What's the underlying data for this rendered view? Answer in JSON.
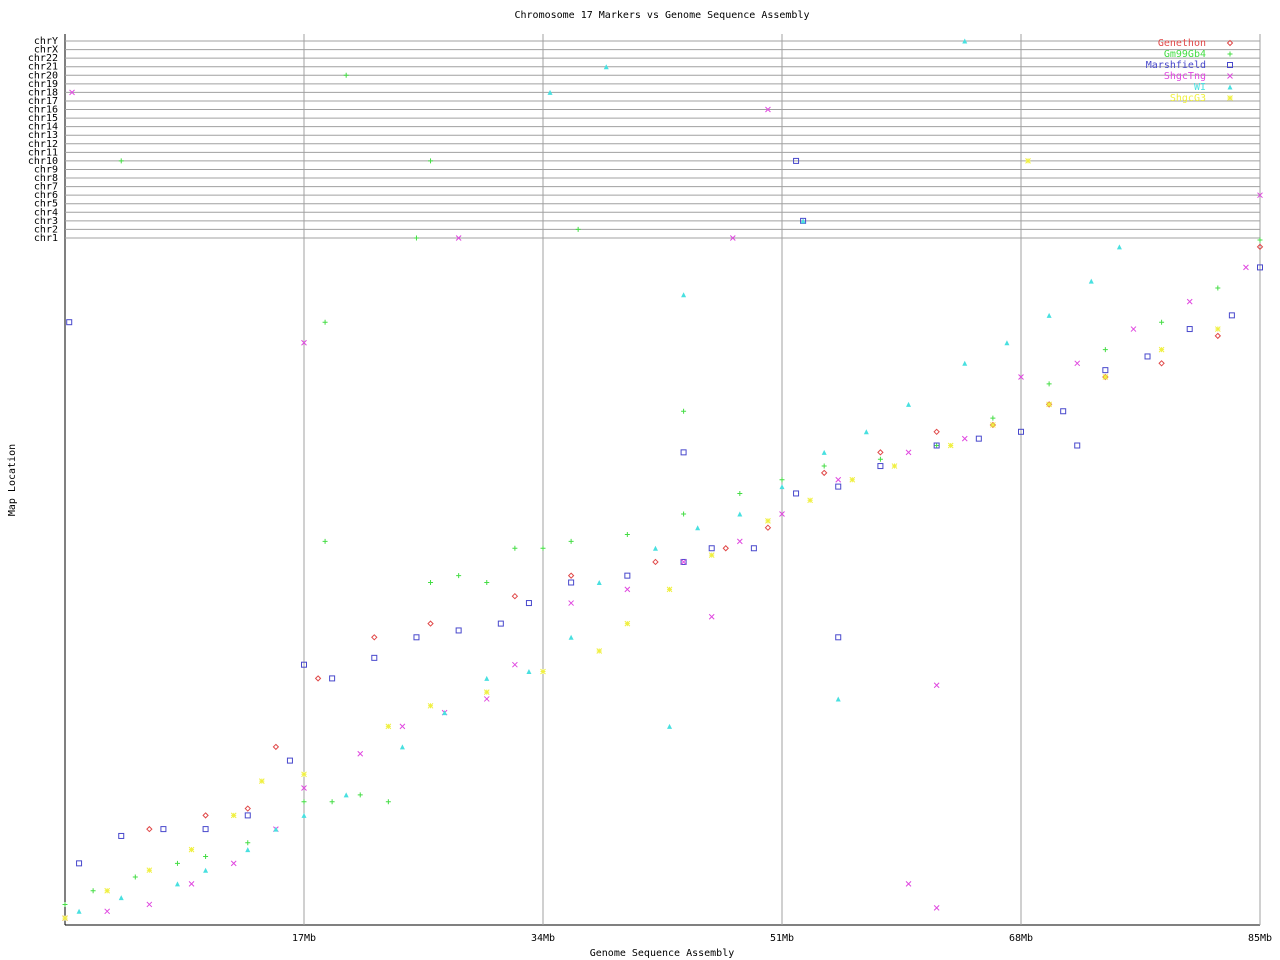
{
  "chart_data": {
    "type": "scatter",
    "title": "Chromosome 17 Markers vs Genome Sequence Assembly",
    "x_label": "Genome Sequence Assembly",
    "y_label": "Map Location",
    "xlim": [
      0,
      85
    ],
    "xticks": [
      {
        "value": 17,
        "label": "17Mb"
      },
      {
        "value": 34,
        "label": "34Mb"
      },
      {
        "value": 51,
        "label": "51Mb"
      },
      {
        "value": 68,
        "label": "68Mb"
      },
      {
        "value": 85,
        "label": "85Mb"
      }
    ],
    "ylim": [
      0,
      100
    ],
    "grid": true,
    "legend": "top-right",
    "chromosomes": [
      "chr1",
      "chr2",
      "chr3",
      "chr4",
      "chr5",
      "chr6",
      "chr7",
      "chr8",
      "chr9",
      "chr10",
      "chr11",
      "chr12",
      "chr13",
      "chr14",
      "chr15",
      "chr16",
      "chr17",
      "chr18",
      "chr19",
      "chr20",
      "chr21",
      "chr22",
      "chrX",
      "chrY"
    ],
    "series": [
      {
        "name": "Genethon",
        "color": "#e04848",
        "marker": "diamond",
        "x": [
          6,
          10,
          13,
          15,
          18,
          22,
          26,
          32,
          36,
          42,
          47,
          50,
          54,
          58,
          62,
          66,
          70,
          74,
          78,
          82,
          85
        ],
        "y": [
          14,
          16,
          17,
          26,
          36,
          42,
          44,
          48,
          51,
          53,
          55,
          58,
          66,
          69,
          72,
          73,
          76,
          80,
          82,
          86,
          99
        ],
        "other": {
          "x": [],
          "chrom": []
        }
      },
      {
        "name": "Gm99Gb4",
        "color": "#44dd44",
        "marker": "plus",
        "x": [
          0,
          2,
          5,
          8,
          10,
          13,
          17,
          19,
          21,
          23,
          26,
          28,
          30,
          32,
          34,
          36,
          40,
          44,
          48,
          51,
          54,
          58,
          62,
          66,
          70,
          74,
          78,
          82,
          85,
          18.5,
          44,
          18.5
        ],
        "y": [
          3,
          5,
          7,
          9,
          10,
          12,
          18,
          18,
          19,
          18,
          50,
          51,
          50,
          55,
          55,
          56,
          57,
          60,
          63,
          65,
          67,
          68,
          70,
          74,
          79,
          84,
          88,
          93,
          100,
          88,
          75,
          56
        ],
        "other": {
          "x": [
            4,
            20,
            26,
            25,
            36.5
          ],
          "chrom": [
            "chr10",
            "chr20",
            "chr10",
            "chr1",
            "chr2"
          ]
        }
      },
      {
        "name": "Marshfield",
        "color": "#4848cc",
        "marker": "square",
        "x": [
          1,
          4,
          7,
          10,
          13,
          16,
          17,
          19,
          22,
          25,
          28,
          31,
          33,
          36,
          40,
          44,
          46,
          49,
          52,
          55,
          58,
          62,
          65,
          68,
          71,
          74,
          77,
          80,
          83,
          85,
          0.3,
          44,
          55,
          72
        ],
        "y": [
          9,
          13,
          14,
          14,
          16,
          24,
          38,
          36,
          39,
          42,
          43,
          44,
          47,
          50,
          51,
          53,
          55,
          55,
          63,
          64,
          67,
          70,
          71,
          72,
          75,
          81,
          83,
          87,
          89,
          96,
          88,
          69,
          42,
          70
        ],
        "other": {
          "x": [
            52,
            52.5
          ],
          "chrom": [
            "chr10",
            "chr3"
          ]
        }
      },
      {
        "name": "ShgcTng",
        "color": "#e048e0",
        "marker": "cross",
        "x": [
          0,
          3,
          6,
          9,
          12,
          15,
          17,
          21,
          24,
          27,
          30,
          32,
          36,
          40,
          44,
          48,
          51,
          55,
          60,
          64,
          68,
          72,
          76,
          80,
          84,
          17,
          46,
          60,
          62,
          62
        ],
        "y": [
          1,
          2,
          3,
          6,
          9,
          14,
          20,
          25,
          29,
          31,
          33,
          38,
          47,
          49,
          53,
          56,
          60,
          65,
          69,
          71,
          80,
          82,
          87,
          91,
          96,
          85,
          45,
          6,
          35,
          2.5
        ],
        "other": {
          "x": [
            0.5,
            28,
            47.5,
            50,
            85
          ],
          "chrom": [
            "chr18",
            "chr1",
            "chr1",
            "chr16",
            "chr6"
          ]
        }
      },
      {
        "name": "WI",
        "color": "#48e0e0",
        "marker": "triangle",
        "x": [
          1,
          4,
          8,
          10,
          13,
          15,
          17,
          20,
          24,
          27,
          30,
          33,
          36,
          38,
          42,
          45,
          48,
          51,
          54,
          57,
          60,
          64,
          67,
          70,
          73,
          75,
          44,
          43,
          55
        ],
        "y": [
          2,
          4,
          6,
          8,
          11,
          14,
          16,
          19,
          26,
          31,
          36,
          37,
          42,
          50,
          55,
          58,
          60,
          64,
          69,
          72,
          76,
          82,
          85,
          89,
          94,
          99,
          92,
          29,
          33
        ],
        "other": {
          "x": [
            38.5,
            34.5,
            64,
            52.5
          ],
          "chrom": [
            "chr21",
            "chr18",
            "chrY",
            "chr3"
          ]
        }
      },
      {
        "name": "ShgcG3",
        "color": "#f0f040",
        "marker": "star",
        "x": [
          0,
          3,
          6,
          9,
          12,
          14,
          17,
          23,
          26,
          30,
          34,
          38,
          40,
          43,
          46,
          50,
          53,
          56,
          59,
          63,
          66,
          70,
          74,
          78,
          82
        ],
        "y": [
          1,
          5,
          8,
          11,
          16,
          21,
          22,
          29,
          32,
          34,
          37,
          40,
          44,
          49,
          54,
          59,
          62,
          65,
          67,
          70,
          73,
          76,
          80,
          84,
          87
        ],
        "other": {
          "x": [
            68.5
          ],
          "chrom": [
            "chr10"
          ]
        }
      }
    ]
  }
}
